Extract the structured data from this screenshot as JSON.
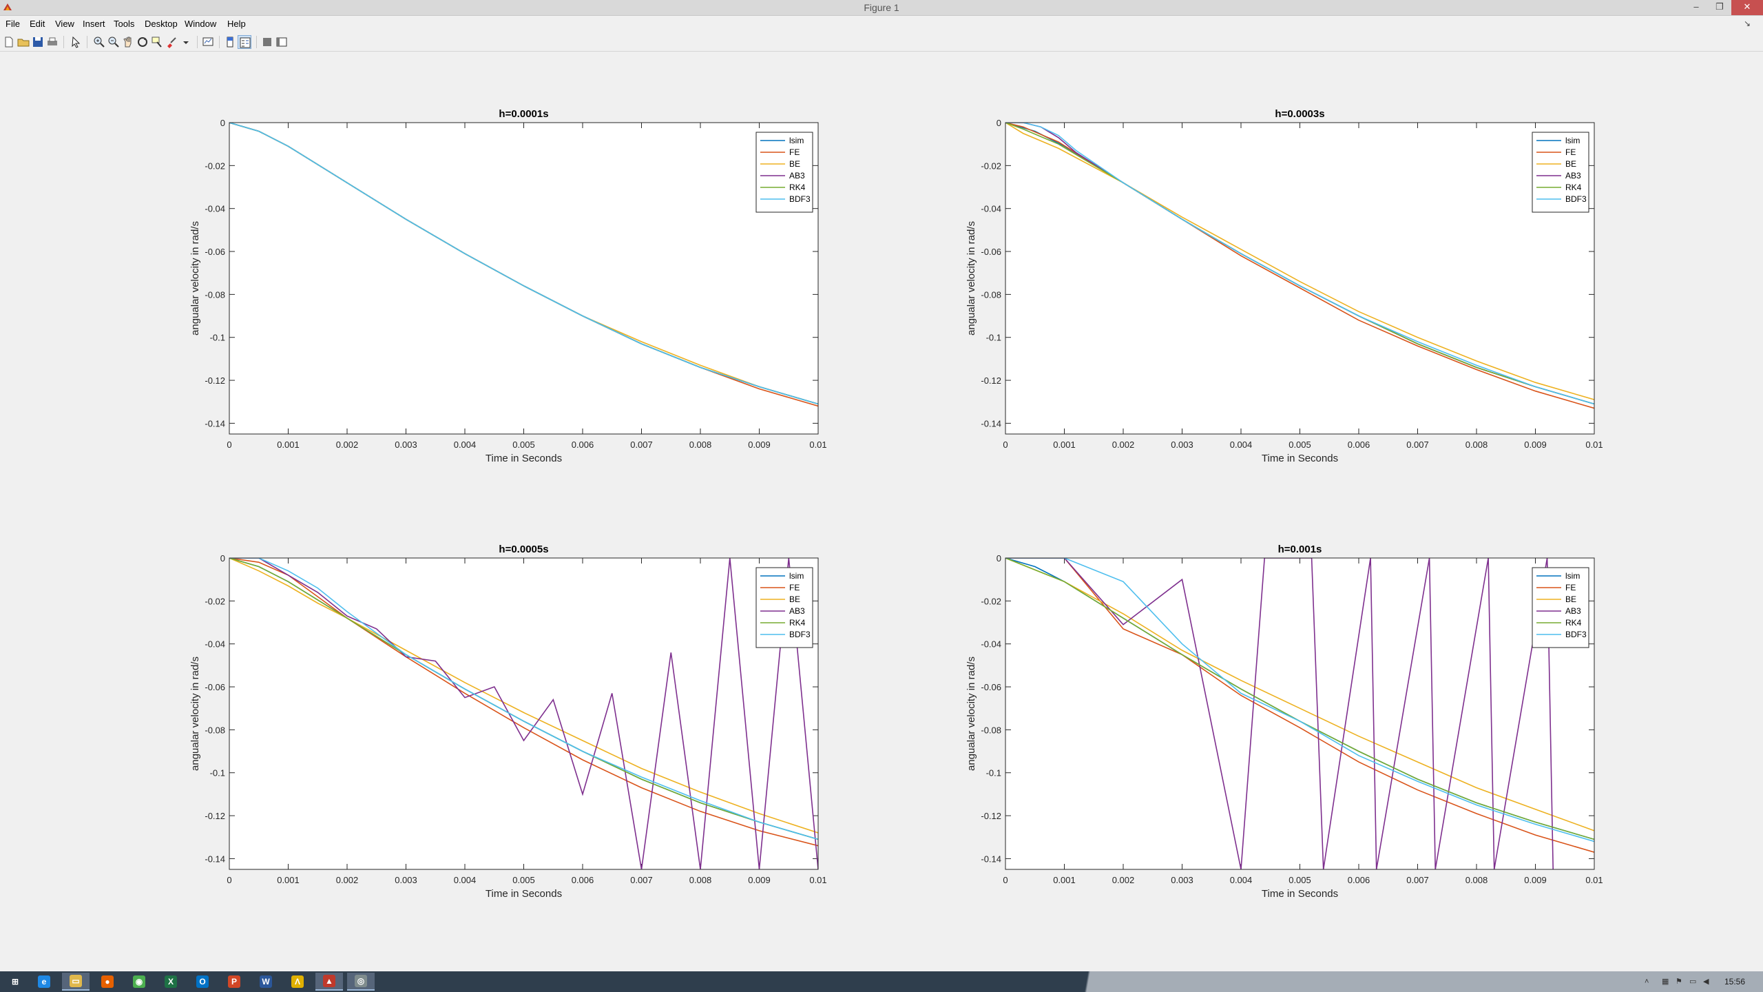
{
  "window": {
    "title": "Figure 1",
    "controls": {
      "minimize": "–",
      "restore": "❐",
      "close": "✕"
    }
  },
  "menu": {
    "items": [
      "File",
      "Edit",
      "View",
      "Insert",
      "Tools",
      "Desktop",
      "Window",
      "Help"
    ]
  },
  "toolbar": {
    "buttons": [
      "new-figure-icon",
      "open-file-icon",
      "save-icon",
      "print-icon",
      "edit-plot-arrow-icon",
      "zoom-in-icon",
      "zoom-out-icon",
      "pan-hand-icon",
      "rotate-3d-icon",
      "data-cursor-icon",
      "brush-icon",
      "link-plot-icon",
      "insert-colorbar-icon",
      "insert-legend-icon",
      "hide-plot-tools-icon",
      "show-plot-tools-icon"
    ]
  },
  "colors": {
    "lsim": "#0072BD",
    "FE": "#D95319",
    "BE": "#EDB120",
    "AB3": "#7E2F8E",
    "RK4": "#77AC30",
    "BDF3": "#4DBEEE"
  },
  "chart_data": [
    {
      "type": "line",
      "title": "h=0.0001s",
      "xlabel": "Time in Seconds",
      "ylabel": "angualar velocity in rad/s",
      "xlim": [
        0,
        0.01
      ],
      "ylim": [
        -0.145,
        0
      ],
      "xticks": [
        "0",
        "0.001",
        "0.002",
        "0.003",
        "0.004",
        "0.005",
        "0.006",
        "0.007",
        "0.008",
        "0.009",
        "0.01"
      ],
      "yticks": [
        "0",
        "-0.02",
        "-0.04",
        "-0.06",
        "-0.08",
        "-0.1",
        "-0.12",
        "-0.14"
      ],
      "legend": [
        "lsim",
        "FE",
        "BE",
        "AB3",
        "RK4",
        "BDF3"
      ],
      "legend_position": "top-right",
      "series": [
        {
          "name": "lsim",
          "x": [
            0,
            0.0005,
            0.001,
            0.002,
            0.003,
            0.004,
            0.005,
            0.006,
            0.007,
            0.008,
            0.009,
            0.01
          ],
          "y": [
            0,
            -0.004,
            -0.011,
            -0.028,
            -0.045,
            -0.061,
            -0.076,
            -0.09,
            -0.103,
            -0.114,
            -0.123,
            -0.131
          ]
        },
        {
          "name": "FE",
          "x": [
            0,
            0.0005,
            0.001,
            0.002,
            0.003,
            0.004,
            0.005,
            0.006,
            0.007,
            0.008,
            0.009,
            0.01
          ],
          "y": [
            0,
            -0.004,
            -0.011,
            -0.028,
            -0.045,
            -0.061,
            -0.076,
            -0.09,
            -0.103,
            -0.114,
            -0.124,
            -0.132
          ]
        },
        {
          "name": "BE",
          "x": [
            0,
            0.0005,
            0.001,
            0.002,
            0.003,
            0.004,
            0.005,
            0.006,
            0.007,
            0.008,
            0.009,
            0.01
          ],
          "y": [
            0,
            -0.004,
            -0.011,
            -0.028,
            -0.045,
            -0.061,
            -0.076,
            -0.09,
            -0.102,
            -0.113,
            -0.123,
            -0.131
          ]
        },
        {
          "name": "AB3",
          "x": [
            0,
            0.0005,
            0.001,
            0.002,
            0.003,
            0.004,
            0.005,
            0.006,
            0.007,
            0.008,
            0.009,
            0.01
          ],
          "y": [
            0,
            -0.004,
            -0.011,
            -0.028,
            -0.045,
            -0.061,
            -0.076,
            -0.09,
            -0.103,
            -0.114,
            -0.123,
            -0.131
          ]
        },
        {
          "name": "RK4",
          "x": [
            0,
            0.0005,
            0.001,
            0.002,
            0.003,
            0.004,
            0.005,
            0.006,
            0.007,
            0.008,
            0.009,
            0.01
          ],
          "y": [
            0,
            -0.004,
            -0.011,
            -0.028,
            -0.045,
            -0.061,
            -0.076,
            -0.09,
            -0.103,
            -0.114,
            -0.123,
            -0.131
          ]
        },
        {
          "name": "BDF3",
          "x": [
            0,
            0.0005,
            0.001,
            0.002,
            0.003,
            0.004,
            0.005,
            0.006,
            0.007,
            0.008,
            0.009,
            0.01
          ],
          "y": [
            0,
            -0.004,
            -0.011,
            -0.028,
            -0.045,
            -0.061,
            -0.076,
            -0.09,
            -0.103,
            -0.114,
            -0.123,
            -0.131
          ]
        }
      ]
    },
    {
      "type": "line",
      "title": "h=0.0003s",
      "xlabel": "Time in Seconds",
      "ylabel": "angualar velocity in rad/s",
      "xlim": [
        0,
        0.01
      ],
      "ylim": [
        -0.145,
        0
      ],
      "xticks": [
        "0",
        "0.001",
        "0.002",
        "0.003",
        "0.004",
        "0.005",
        "0.006",
        "0.007",
        "0.008",
        "0.009",
        "0.01"
      ],
      "yticks": [
        "0",
        "-0.02",
        "-0.04",
        "-0.06",
        "-0.08",
        "-0.1",
        "-0.12",
        "-0.14"
      ],
      "legend": [
        "lsim",
        "FE",
        "BE",
        "AB3",
        "RK4",
        "BDF3"
      ],
      "legend_position": "top-right",
      "series": [
        {
          "name": "lsim",
          "x": [
            0,
            0.0005,
            0.001,
            0.002,
            0.003,
            0.004,
            0.005,
            0.006,
            0.007,
            0.008,
            0.009,
            0.01
          ],
          "y": [
            0,
            -0.004,
            -0.011,
            -0.028,
            -0.045,
            -0.061,
            -0.076,
            -0.09,
            -0.103,
            -0.114,
            -0.123,
            -0.131
          ]
        },
        {
          "name": "FE",
          "x": [
            0,
            0.0003,
            0.0009,
            0.002,
            0.003,
            0.004,
            0.005,
            0.006,
            0.007,
            0.008,
            0.009,
            0.01
          ],
          "y": [
            0,
            -0.002,
            -0.009,
            -0.028,
            -0.045,
            -0.062,
            -0.077,
            -0.092,
            -0.104,
            -0.115,
            -0.125,
            -0.133
          ]
        },
        {
          "name": "BE",
          "x": [
            0,
            0.0003,
            0.0009,
            0.002,
            0.003,
            0.004,
            0.005,
            0.006,
            0.007,
            0.008,
            0.009,
            0.01
          ],
          "y": [
            0,
            -0.005,
            -0.012,
            -0.028,
            -0.044,
            -0.059,
            -0.074,
            -0.088,
            -0.1,
            -0.111,
            -0.121,
            -0.129
          ]
        },
        {
          "name": "AB3",
          "x": [
            0,
            0.0003,
            0.0006,
            0.0009,
            0.0012,
            0.002,
            0.003,
            0.004,
            0.005,
            0.006,
            0.007,
            0.008,
            0.009,
            0.01
          ],
          "y": [
            0,
            0,
            -0.002,
            -0.007,
            -0.014,
            -0.028,
            -0.045,
            -0.061,
            -0.076,
            -0.09,
            -0.103,
            -0.114,
            -0.123,
            -0.131
          ]
        },
        {
          "name": "RK4",
          "x": [
            0,
            0.0003,
            0.0009,
            0.002,
            0.003,
            0.004,
            0.005,
            0.006,
            0.007,
            0.008,
            0.009,
            0.01
          ],
          "y": [
            0,
            -0.003,
            -0.01,
            -0.028,
            -0.045,
            -0.061,
            -0.076,
            -0.09,
            -0.103,
            -0.114,
            -0.123,
            -0.131
          ]
        },
        {
          "name": "BDF3",
          "x": [
            0,
            0.0003,
            0.0006,
            0.0009,
            0.0012,
            0.002,
            0.003,
            0.004,
            0.005,
            0.006,
            0.007,
            0.008,
            0.009,
            0.01
          ],
          "y": [
            0,
            0,
            -0.002,
            -0.006,
            -0.013,
            -0.028,
            -0.045,
            -0.061,
            -0.076,
            -0.09,
            -0.102,
            -0.113,
            -0.123,
            -0.131
          ]
        }
      ]
    },
    {
      "type": "line",
      "title": "h=0.0005s",
      "xlabel": "Time in Seconds",
      "ylabel": "angualar velocity in rad/s",
      "xlim": [
        0,
        0.01
      ],
      "ylim": [
        -0.145,
        0
      ],
      "xticks": [
        "0",
        "0.001",
        "0.002",
        "0.003",
        "0.004",
        "0.005",
        "0.006",
        "0.007",
        "0.008",
        "0.009",
        "0.01"
      ],
      "yticks": [
        "0",
        "-0.02",
        "-0.04",
        "-0.06",
        "-0.08",
        "-0.1",
        "-0.12",
        "-0.14"
      ],
      "legend": [
        "lsim",
        "FE",
        "BE",
        "AB3",
        "RK4",
        "BDF3"
      ],
      "legend_position": "top-right",
      "series": [
        {
          "name": "lsim",
          "x": [
            0,
            0.0005,
            0.001,
            0.002,
            0.003,
            0.004,
            0.005,
            0.006,
            0.007,
            0.008,
            0.009,
            0.01
          ],
          "y": [
            0,
            -0.004,
            -0.011,
            -0.028,
            -0.045,
            -0.061,
            -0.076,
            -0.09,
            -0.103,
            -0.114,
            -0.123,
            -0.131
          ]
        },
        {
          "name": "FE",
          "x": [
            0,
            0.0005,
            0.001,
            0.0015,
            0.002,
            0.003,
            0.004,
            0.005,
            0.006,
            0.007,
            0.008,
            0.009,
            0.01
          ],
          "y": [
            0,
            -0.002,
            -0.008,
            -0.018,
            -0.028,
            -0.046,
            -0.063,
            -0.079,
            -0.094,
            -0.107,
            -0.118,
            -0.127,
            -0.134
          ]
        },
        {
          "name": "BE",
          "x": [
            0,
            0.0005,
            0.001,
            0.0015,
            0.002,
            0.003,
            0.004,
            0.005,
            0.006,
            0.007,
            0.008,
            0.009,
            0.01
          ],
          "y": [
            0,
            -0.006,
            -0.013,
            -0.021,
            -0.028,
            -0.043,
            -0.058,
            -0.072,
            -0.085,
            -0.098,
            -0.109,
            -0.119,
            -0.128
          ]
        },
        {
          "name": "AB3",
          "x": [
            0,
            0.0005,
            0.001,
            0.0015,
            0.002,
            0.0025,
            0.003,
            0.0035,
            0.004,
            0.0045,
            0.005,
            0.0055,
            0.006,
            0.0065,
            0.007,
            0.0075,
            0.008,
            0.0085,
            0.009,
            0.0095,
            0.01
          ],
          "y": [
            0,
            0,
            -0.008,
            -0.016,
            -0.027,
            -0.033,
            -0.046,
            -0.048,
            -0.065,
            -0.06,
            -0.085,
            -0.066,
            -0.11,
            -0.063,
            -0.145,
            -0.044,
            -0.145,
            0,
            -0.145,
            0,
            -0.145
          ]
        },
        {
          "name": "RK4",
          "x": [
            0,
            0.0005,
            0.001,
            0.002,
            0.003,
            0.004,
            0.005,
            0.006,
            0.007,
            0.008,
            0.009,
            0.01
          ],
          "y": [
            0,
            -0.004,
            -0.011,
            -0.028,
            -0.045,
            -0.061,
            -0.076,
            -0.09,
            -0.103,
            -0.114,
            -0.123,
            -0.131
          ]
        },
        {
          "name": "BDF3",
          "x": [
            0,
            0.0005,
            0.001,
            0.0015,
            0.002,
            0.0025,
            0.003,
            0.004,
            0.005,
            0.006,
            0.007,
            0.008,
            0.009,
            0.01
          ],
          "y": [
            0,
            0,
            -0.006,
            -0.014,
            -0.025,
            -0.035,
            -0.045,
            -0.061,
            -0.076,
            -0.09,
            -0.102,
            -0.113,
            -0.123,
            -0.131
          ]
        }
      ]
    },
    {
      "type": "line",
      "title": "h=0.001s",
      "xlabel": "Time in Seconds",
      "ylabel": "angualar velocity in rad/s",
      "xlim": [
        0,
        0.01
      ],
      "ylim": [
        -0.145,
        0
      ],
      "xticks": [
        "0",
        "0.001",
        "0.002",
        "0.003",
        "0.004",
        "0.005",
        "0.006",
        "0.007",
        "0.008",
        "0.009",
        "0.01"
      ],
      "yticks": [
        "0",
        "-0.02",
        "-0.04",
        "-0.06",
        "-0.08",
        "-0.1",
        "-0.12",
        "-0.14"
      ],
      "legend": [
        "lsim",
        "FE",
        "BE",
        "AB3",
        "RK4",
        "BDF3"
      ],
      "legend_position": "top-right",
      "series": [
        {
          "name": "lsim",
          "x": [
            0,
            0.0005,
            0.001,
            0.002,
            0.003,
            0.004,
            0.005,
            0.006,
            0.007,
            0.008,
            0.009,
            0.01
          ],
          "y": [
            0,
            -0.004,
            -0.011,
            -0.028,
            -0.045,
            -0.061,
            -0.076,
            -0.09,
            -0.103,
            -0.114,
            -0.123,
            -0.131
          ]
        },
        {
          "name": "FE",
          "x": [
            0,
            0.001,
            0.002,
            0.003,
            0.004,
            0.005,
            0.006,
            0.007,
            0.008,
            0.009,
            0.01
          ],
          "y": [
            0,
            0,
            -0.033,
            -0.045,
            -0.064,
            -0.079,
            -0.095,
            -0.108,
            -0.119,
            -0.129,
            -0.137
          ]
        },
        {
          "name": "BE",
          "x": [
            0,
            0.001,
            0.002,
            0.003,
            0.004,
            0.005,
            0.006,
            0.007,
            0.008,
            0.009,
            0.01
          ],
          "y": [
            0,
            -0.011,
            -0.026,
            -0.043,
            -0.057,
            -0.07,
            -0.083,
            -0.095,
            -0.107,
            -0.117,
            -0.127
          ]
        },
        {
          "name": "AB3",
          "x": [
            0,
            0.001,
            0.002,
            0.003,
            0.004,
            0.0044,
            0.0052,
            0.0054,
            0.0062,
            0.0063,
            0.0072,
            0.0073,
            0.0082,
            0.0083,
            0.0092,
            0.0093
          ],
          "y": [
            0,
            0,
            -0.031,
            -0.01,
            -0.145,
            0,
            0,
            -0.145,
            0,
            -0.145,
            0,
            -0.145,
            0,
            -0.145,
            0,
            -0.145
          ]
        },
        {
          "name": "RK4",
          "x": [
            0,
            0.001,
            0.002,
            0.003,
            0.004,
            0.005,
            0.006,
            0.007,
            0.008,
            0.009,
            0.01
          ],
          "y": [
            0,
            -0.011,
            -0.028,
            -0.045,
            -0.061,
            -0.076,
            -0.09,
            -0.103,
            -0.114,
            -0.123,
            -0.131
          ]
        },
        {
          "name": "BDF3",
          "x": [
            0,
            0.001,
            0.002,
            0.003,
            0.004,
            0.005,
            0.006,
            0.007,
            0.008,
            0.009,
            0.01
          ],
          "y": [
            0,
            0,
            -0.011,
            -0.04,
            -0.063,
            -0.076,
            -0.092,
            -0.104,
            -0.115,
            -0.124,
            -0.132
          ]
        }
      ]
    }
  ],
  "taskbar": {
    "apps": [
      {
        "name": "start-icon",
        "glyph": "⊞",
        "color": "#2f3e4d"
      },
      {
        "name": "internet-explorer-icon",
        "glyph": "e",
        "color": "#1e88e5"
      },
      {
        "name": "file-explorer-icon",
        "glyph": "▭",
        "color": "#e0b84c"
      },
      {
        "name": "firefox-icon",
        "glyph": "●",
        "color": "#e66000"
      },
      {
        "name": "chrome-icon",
        "glyph": "◉",
        "color": "#4caf50"
      },
      {
        "name": "excel-icon",
        "glyph": "X",
        "color": "#1e7145"
      },
      {
        "name": "outlook-icon",
        "glyph": "O",
        "color": "#0072c6"
      },
      {
        "name": "powerpoint-icon",
        "glyph": "P",
        "color": "#d24726"
      },
      {
        "name": "word-icon",
        "glyph": "W",
        "color": "#2b579a"
      },
      {
        "name": "maple-icon",
        "glyph": "Λ",
        "color": "#e0b000"
      },
      {
        "name": "matlab-icon",
        "glyph": "▲",
        "color": "#c0392b"
      },
      {
        "name": "figure-window-icon",
        "glyph": "◎",
        "color": "#7f8c8d"
      }
    ],
    "clock": "15:56"
  }
}
